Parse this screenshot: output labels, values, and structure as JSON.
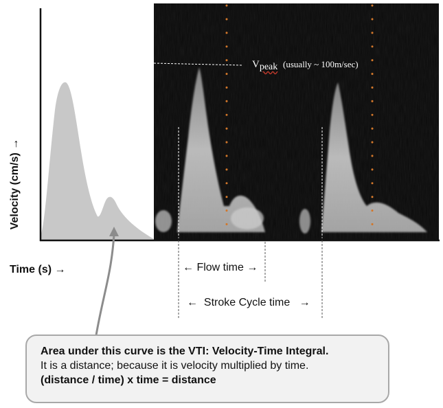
{
  "axes": {
    "ylabel": "Velocity (cm/s)",
    "ylabel_arrow": "→",
    "xlabel": "Time (s)",
    "xlabel_arrow": "→"
  },
  "vpeak": {
    "v": "V",
    "sub": "peak",
    "note": "(usually ~ 100m/sec)"
  },
  "flow_time": {
    "left_arrow": "←",
    "label": "Flow time",
    "right_arrow": "→"
  },
  "stroke_cycle": {
    "left_arrow": "←",
    "label": "Stroke Cycle time",
    "right_arrow": "→"
  },
  "callout": {
    "line1": "Area under this curve is the VTI: Velocity-Time Integral.",
    "line2": "It is a distance; because it is velocity multiplied by time.",
    "line3": "(distance / time) x time = distance"
  },
  "colors": {
    "curve_fill": "#c8c8c8",
    "doppler_bg": "#0b0b0b",
    "marker_dots": "#d2772a",
    "callout_border": "#a8a8a8",
    "callout_fill": "#f2f2f2"
  }
}
